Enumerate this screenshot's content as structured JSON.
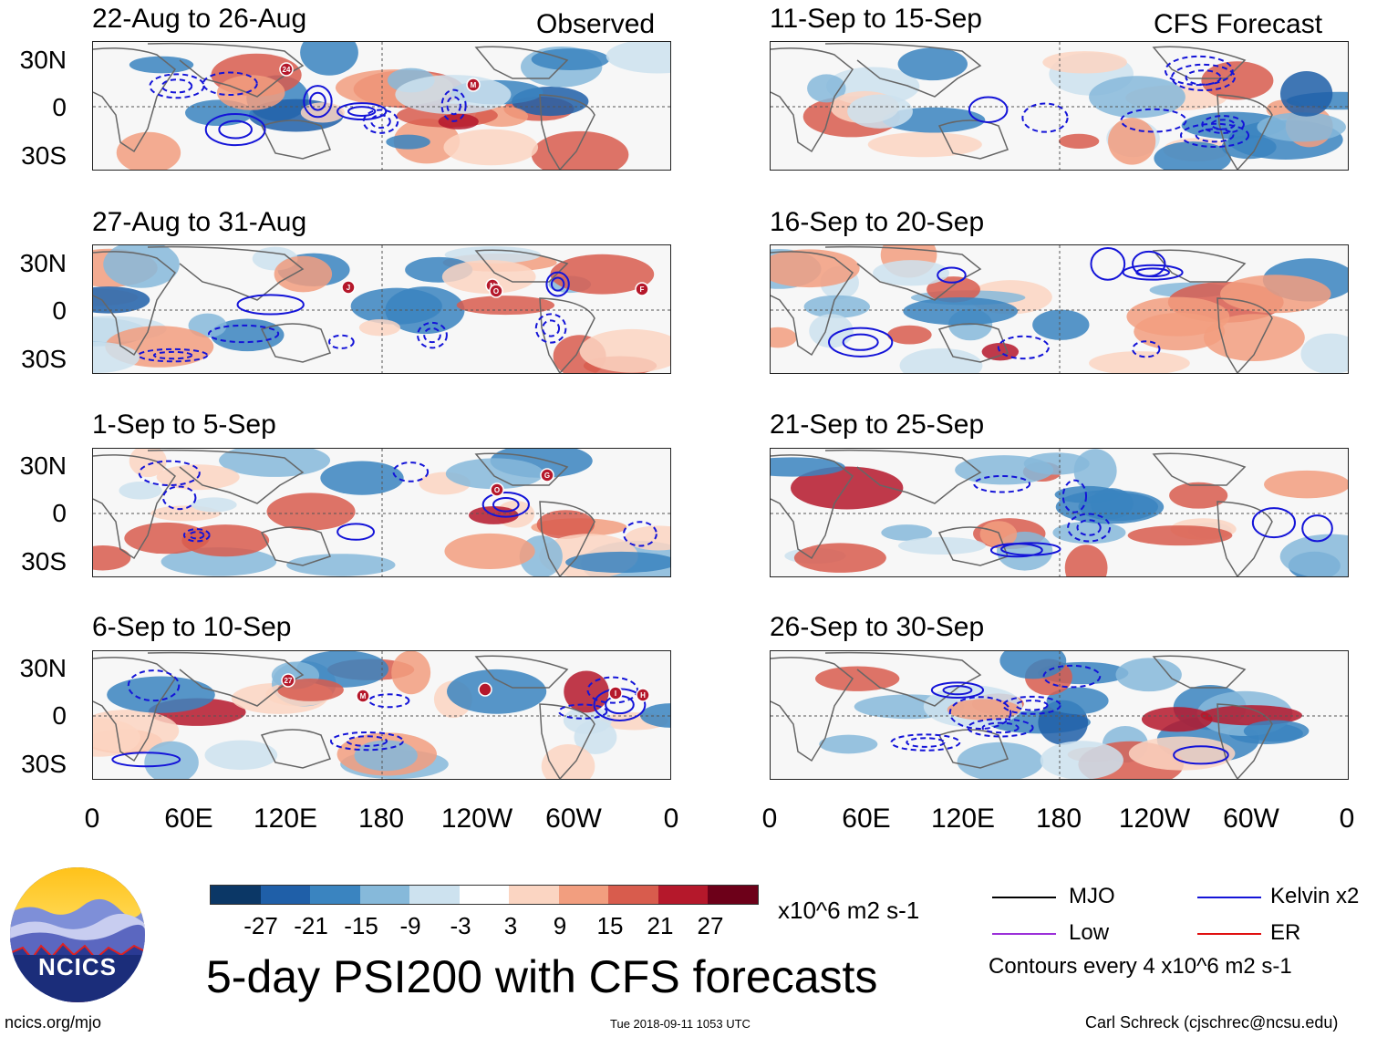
{
  "panels_left": {
    "label": "Observed",
    "titles": [
      "22-Aug to 26-Aug",
      "27-Aug to 31-Aug",
      "1-Sep to 5-Sep",
      "6-Sep to 10-Sep"
    ]
  },
  "panels_right": {
    "label": "CFS Forecast",
    "titles": [
      "11-Sep to 15-Sep",
      "16-Sep to 20-Sep",
      "21-Sep to 25-Sep",
      "26-Sep to 30-Sep"
    ]
  },
  "lat_labels": [
    "30N",
    "0",
    "30S"
  ],
  "lon_labels": [
    "0",
    "60E",
    "120E",
    "180",
    "120W",
    "60W",
    "0"
  ],
  "storm_markers": {
    "p0": [
      "24",
      "M"
    ],
    "p1": [
      "J",
      "N",
      "O",
      "F"
    ],
    "p2": [
      "O",
      "G"
    ],
    "p3": [
      "27",
      "M",
      "",
      "I",
      "H"
    ]
  },
  "colorbar": {
    "colors": [
      "#0b3766",
      "#1f5fa8",
      "#3a84c0",
      "#86b9da",
      "#cde2ef",
      "#ffffff",
      "#fbd5c2",
      "#f29e7f",
      "#d85c4d",
      "#b5182b",
      "#6d0019"
    ],
    "ticks": [
      "-27",
      "-21",
      "-15",
      "-9",
      "-3",
      "3",
      "9",
      "15",
      "21",
      "27"
    ],
    "units": "x10^6 m2 s-1"
  },
  "legend": {
    "mjo": "MJO",
    "kelvin": "Kelvin x2",
    "low": "Low",
    "er": "ER",
    "contours": "Contours every 4 x10^6 m2 s-1",
    "colors": {
      "mjo": "#000000",
      "kelvin": "#1414d8",
      "low": "#9b30d9",
      "er": "#e01010"
    }
  },
  "logo_text": "NCICS",
  "main_title": "5-day PSI200 with CFS forecasts",
  "footer": {
    "left": "ncics.org/mjo",
    "center": "Tue 2018-09-11 1053 UTC",
    "right": "Carl Schreck (cjschrec@ncsu.edu)"
  }
}
